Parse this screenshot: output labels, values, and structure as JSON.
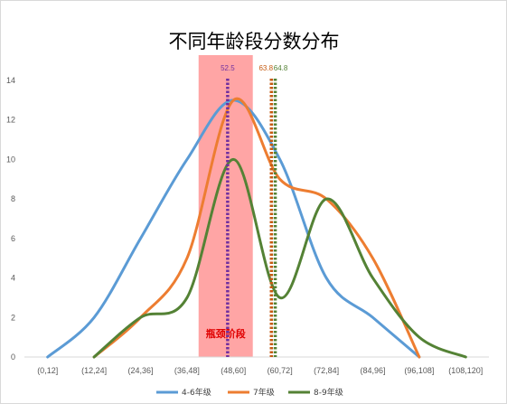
{
  "chart_data": {
    "type": "line",
    "title": "不同年龄段分数分布",
    "categories": [
      "(0,12]",
      "(12,24]",
      "(24,36]",
      "(36,48]",
      "(48,60]",
      "(60,72]",
      "(72,84]",
      "(84,96]",
      "(96,108]",
      "(108,120]"
    ],
    "series": [
      {
        "name": "4-6年级",
        "color": "#5b9bd5",
        "values": [
          0,
          2,
          6,
          10,
          13,
          10,
          4,
          2,
          0,
          null
        ]
      },
      {
        "name": "7年级",
        "color": "#ed7d31",
        "values": [
          null,
          0,
          2,
          5,
          13,
          9,
          8,
          5,
          0,
          null
        ]
      },
      {
        "name": "8-9年级",
        "color": "#548235",
        "values": [
          null,
          0,
          2,
          3,
          10,
          3,
          8,
          4,
          1,
          0
        ]
      }
    ],
    "ylim": [
      0,
      14
    ],
    "yticks": [
      0,
      2,
      4,
      6,
      8,
      10,
      12,
      14
    ],
    "grid": false,
    "legend": "bottom",
    "reference_lines": [
      {
        "label": "52.5",
        "x": 52.5,
        "color": "#7030a0"
      },
      {
        "label": "63.8",
        "x": 63.8,
        "color": "#c55a11"
      },
      {
        "label": "64.8",
        "x": 64.8,
        "color": "#548235"
      }
    ],
    "highlight": {
      "label": "瓶颈阶段",
      "from": 45,
      "to": 59,
      "color": "#ff9b9b"
    }
  }
}
